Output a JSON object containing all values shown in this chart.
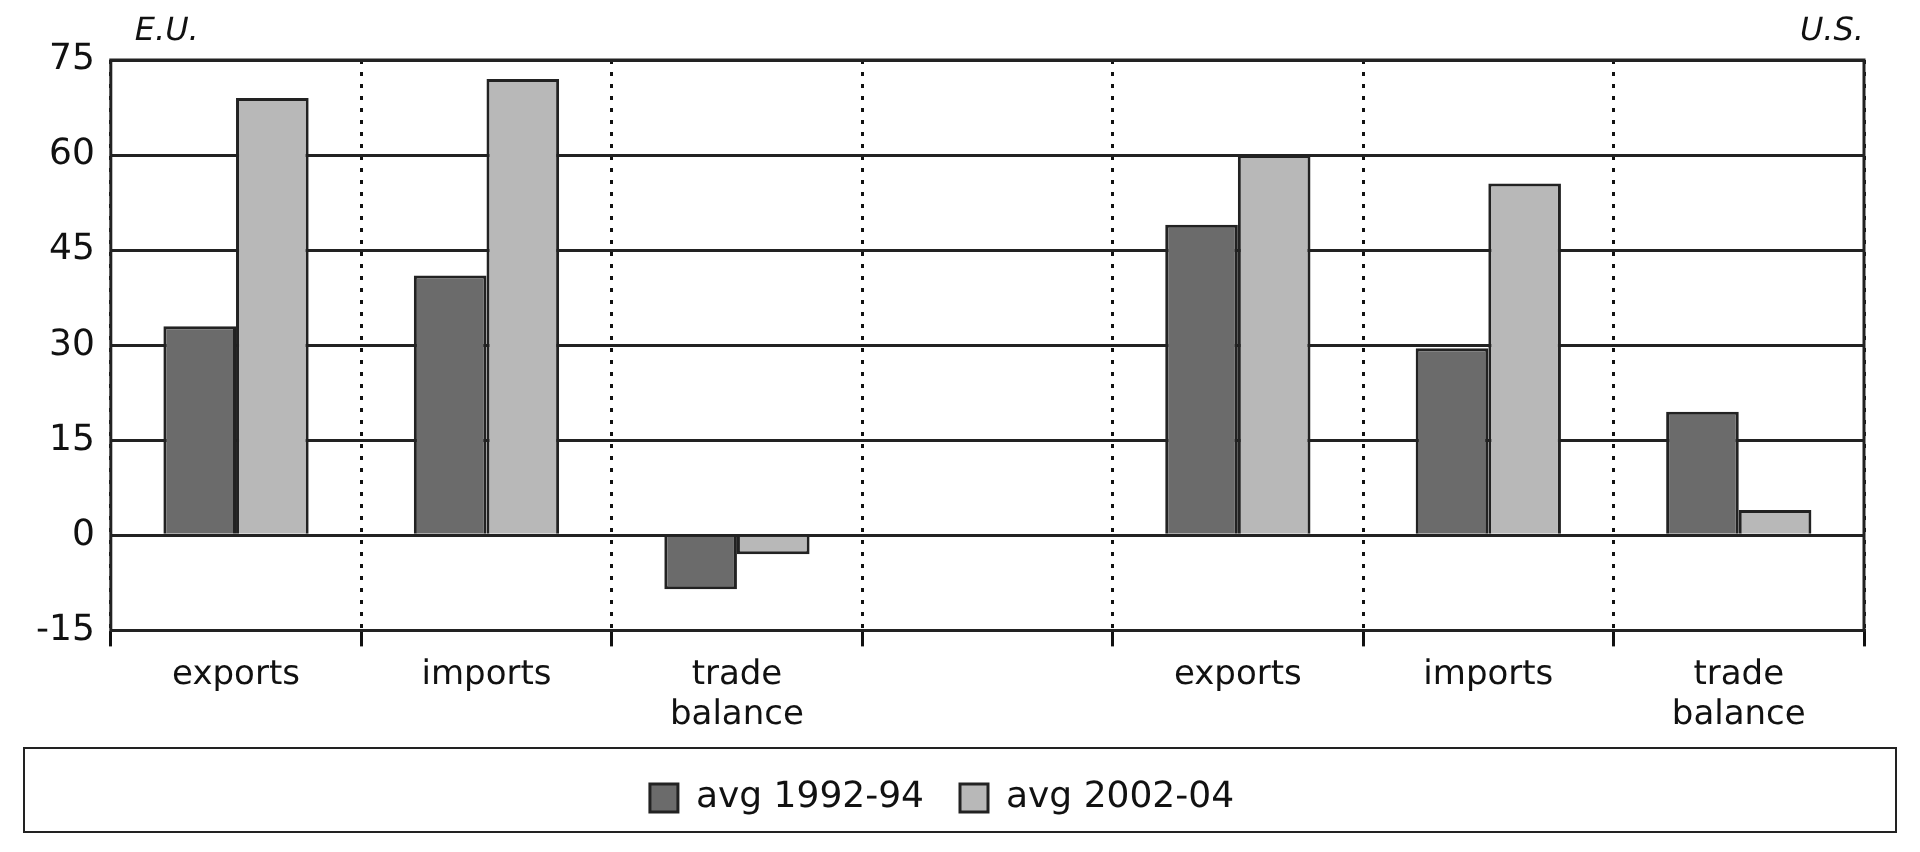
{
  "chart_data": {
    "type": "bar",
    "categories": [
      "exports",
      "imports",
      "trade balance",
      null,
      "exports",
      "imports",
      "trade balance"
    ],
    "series": [
      {
        "name": "avg 1992-94",
        "color": "#6b6b6b",
        "values": [
          33,
          41,
          -8.5,
          null,
          49,
          29.5,
          19.5
        ]
      },
      {
        "name": "avg 2002-04",
        "color": "#b8b8b8",
        "values": [
          69,
          72,
          -3,
          null,
          60,
          55.5,
          4
        ]
      }
    ],
    "ylim": [
      -15,
      75
    ],
    "yticks": [
      -15,
      0,
      15,
      30,
      45,
      60,
      75
    ],
    "grid": true,
    "legend": "bottom",
    "annotations": [
      "E.U.",
      "U.S."
    ]
  }
}
